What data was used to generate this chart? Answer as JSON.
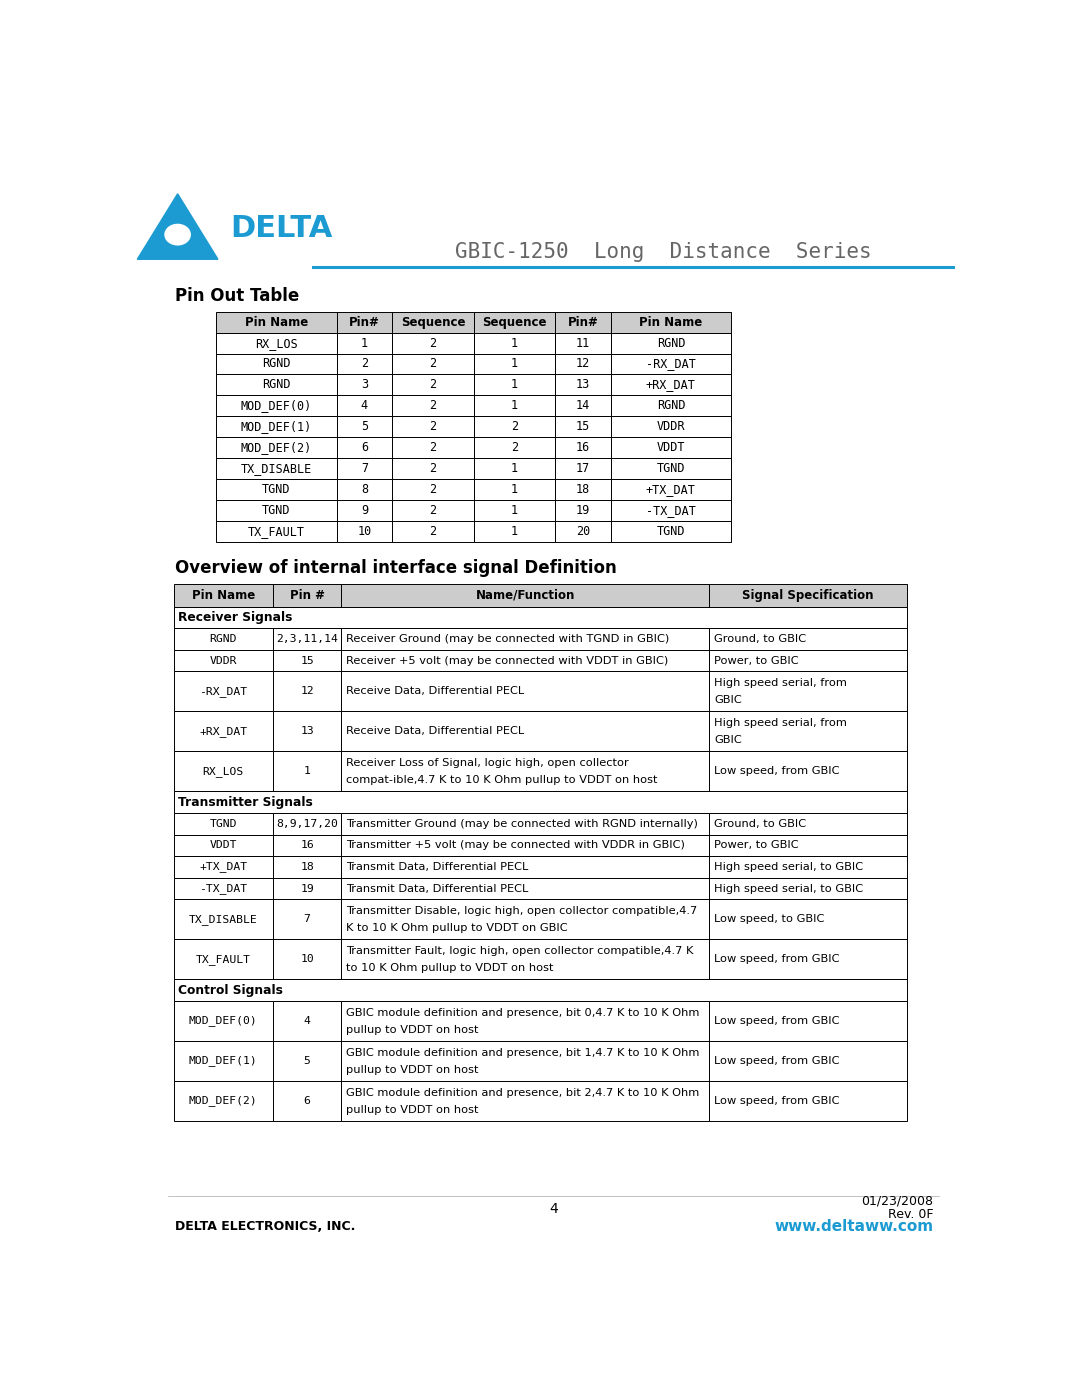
{
  "page_title": "GBIC-1250  Long  Distance  Series",
  "section1_title": "Pin Out Table",
  "section2_title": "Overview of internal interface signal Definition",
  "pinout_headers": [
    "Pin Name",
    "Pin#",
    "Sequence",
    "Sequence",
    "Pin#",
    "Pin Name"
  ],
  "pinout_rows": [
    [
      "RX_LOS",
      "1",
      "2",
      "1",
      "11",
      "RGND"
    ],
    [
      "RGND",
      "2",
      "2",
      "1",
      "12",
      "-RX_DAT"
    ],
    [
      "RGND",
      "3",
      "2",
      "1",
      "13",
      "+RX_DAT"
    ],
    [
      "MOD_DEF(0)",
      "4",
      "2",
      "1",
      "14",
      "RGND"
    ],
    [
      "MOD_DEF(1)",
      "5",
      "2",
      "2",
      "15",
      "VDDR"
    ],
    [
      "MOD_DEF(2)",
      "6",
      "2",
      "2",
      "16",
      "VDDT"
    ],
    [
      "TX_DISABLE",
      "7",
      "2",
      "1",
      "17",
      "TGND"
    ],
    [
      "TGND",
      "8",
      "2",
      "1",
      "18",
      "+TX_DAT"
    ],
    [
      "TGND",
      "9",
      "2",
      "1",
      "19",
      "-TX_DAT"
    ],
    [
      "TX_FAULT",
      "10",
      "2",
      "1",
      "20",
      "TGND"
    ]
  ],
  "signal_headers": [
    "Pin Name",
    "Pin #",
    "Name/Function",
    "Signal Specification"
  ],
  "signal_section_receiver": "Receiver Signals",
  "signal_section_transmitter": "Transmitter Signals",
  "signal_section_control": "Control Signals",
  "signal_rows": [
    [
      "RGND",
      "2,3,11,14",
      "Receiver Ground (may be connected with TGND in GBIC)",
      "Ground, to GBIC"
    ],
    [
      "VDDR",
      "15",
      "Receiver +5 volt (may be connected with VDDT in GBIC)",
      "Power, to GBIC"
    ],
    [
      "-RX_DAT",
      "12",
      "Receive Data, Differential PECL",
      "High speed serial, from\nGBIC"
    ],
    [
      "+RX_DAT",
      "13",
      "Receive Data, Differential PECL",
      "High speed serial, from\nGBIC"
    ],
    [
      "RX_LOS",
      "1",
      "Receiver Loss of Signal, logic high, open collector\ncompat-ible,4.7 K to 10 K Ohm pullup to VDDT on host",
      "Low speed, from GBIC"
    ],
    [
      "TGND",
      "8,9,17,20",
      "Transmitter Ground (may be connected with RGND internally)",
      "Ground, to GBIC"
    ],
    [
      "VDDT",
      "16",
      "Transmitter +5 volt (may be connected with VDDR in GBIC)",
      "Power, to GBIC"
    ],
    [
      "+TX_DAT",
      "18",
      "Transmit Data, Differential PECL",
      "High speed serial, to GBIC"
    ],
    [
      "-TX_DAT",
      "19",
      "Transmit Data, Differential PECL",
      "High speed serial, to GBIC"
    ],
    [
      "TX_DISABLE",
      "7",
      "Transmitter Disable, logic high, open collector compatible,4.7\nK to 10 K Ohm pullup to VDDT on GBIC",
      "Low speed, to GBIC"
    ],
    [
      "TX_FAULT",
      "10",
      "Transmitter Fault, logic high, open collector compatible,4.7 K\nto 10 K Ohm pullup to VDDT on host",
      "Low speed, from GBIC"
    ],
    [
      "MOD_DEF(0)",
      "4",
      "GBIC module definition and presence, bit 0,4.7 K to 10 K Ohm\npullup to VDDT on host",
      "Low speed, from GBIC"
    ],
    [
      "MOD_DEF(1)",
      "5",
      "GBIC module definition and presence, bit 1,4.7 K to 10 K Ohm\npullup to VDDT on host",
      "Low speed, from GBIC"
    ],
    [
      "MOD_DEF(2)",
      "6",
      "GBIC module definition and presence, bit 2,4.7 K to 10 K Ohm\npullup to VDDT on host",
      "Low speed, from GBIC"
    ]
  ],
  "footer_page": "4",
  "footer_date": "01/23/2008",
  "footer_rev": "Rev. 0F",
  "footer_company": "DELTA ELECTRONICS, INC.",
  "footer_website": "www.deltaww.com",
  "blue_color": "#1B9BD1",
  "header_bg": "#CCCCCC",
  "border_color": "#000000",
  "text_color": "#000000"
}
